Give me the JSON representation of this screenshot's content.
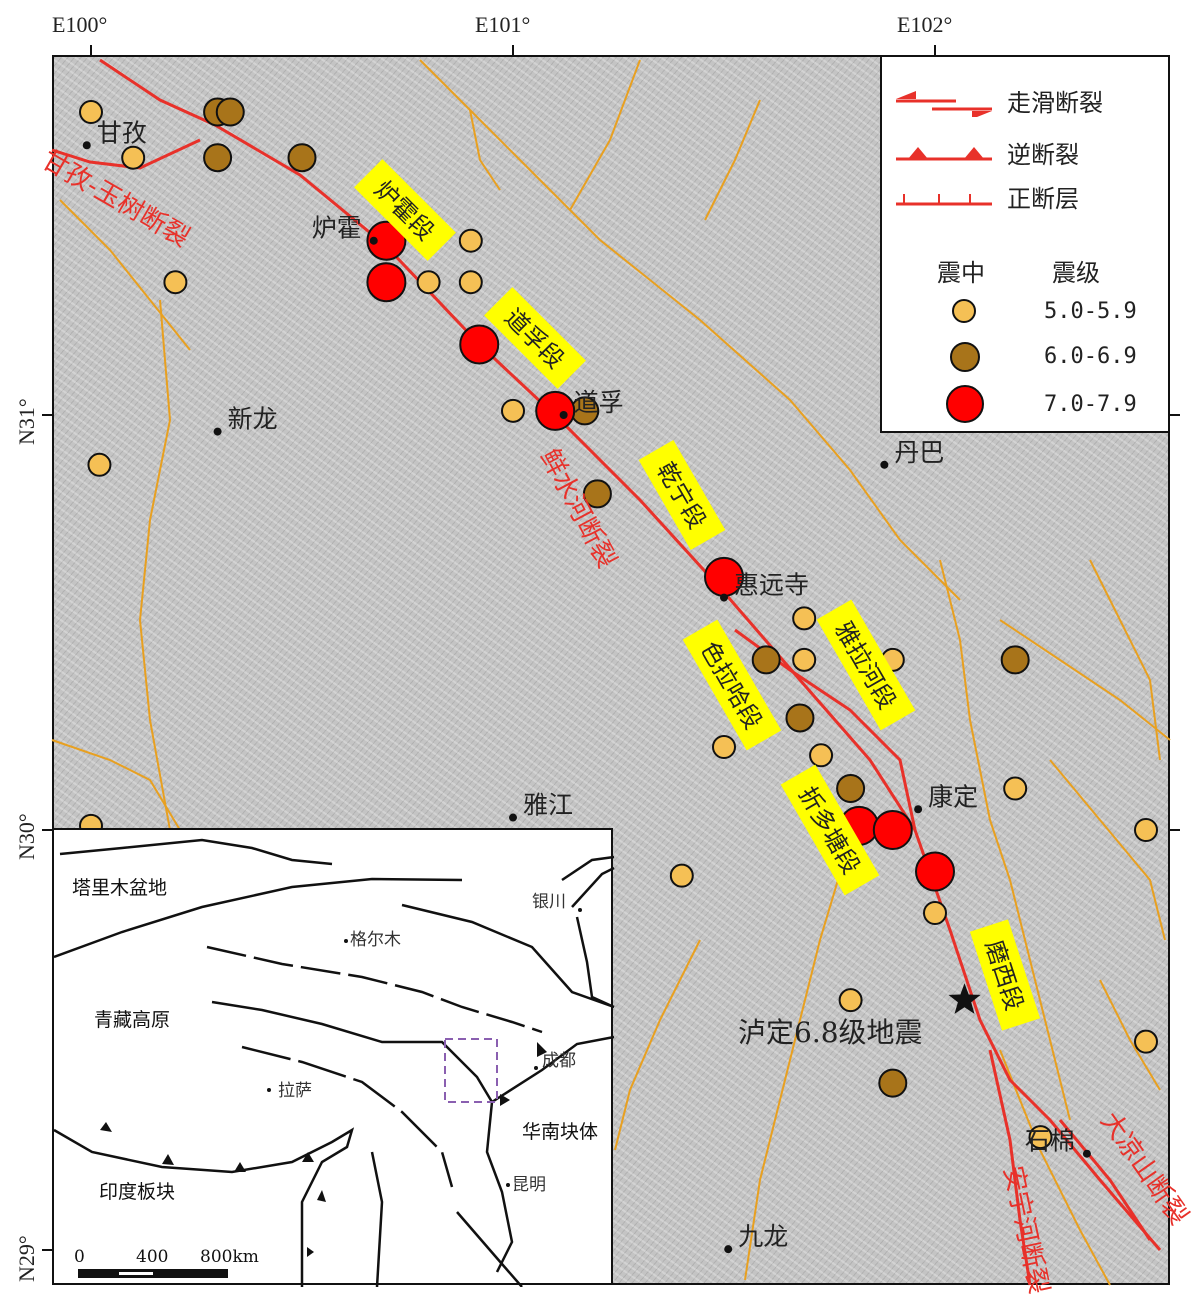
{
  "axes": {
    "longitude_labels": [
      "E100°",
      "E101°",
      "E102°"
    ],
    "latitude_labels": [
      "N31°",
      "N30°",
      "N29°"
    ]
  },
  "legend": {
    "strike_slip": "走滑断裂",
    "thrust": "逆断裂",
    "normal": "正断层",
    "epicenter_header": "震中",
    "magnitude_header": "震级",
    "classes": [
      {
        "range": "5.0-5.9",
        "color": "#f5c055"
      },
      {
        "range": "6.0-6.9",
        "color": "#a8741a"
      },
      {
        "range": "7.0-7.9",
        "color": "#ff0000"
      }
    ]
  },
  "colors": {
    "fault_main": "#e8312a",
    "fault_minor": "#e8a020",
    "segment_label_bg": "#ffff00",
    "inset_box": "#8a5fb0"
  },
  "places": [
    {
      "name": "甘孜",
      "lon": 99.99,
      "lat": 31.65
    },
    {
      "name": "炉霍",
      "lon": 100.67,
      "lat": 31.42
    },
    {
      "name": "道孚",
      "lon": 101.12,
      "lat": 31.0
    },
    {
      "name": "新龙",
      "lon": 100.3,
      "lat": 30.96
    },
    {
      "name": "丹巴",
      "lon": 101.88,
      "lat": 30.88
    },
    {
      "name": "惠远寺",
      "lon": 101.5,
      "lat": 30.56
    },
    {
      "name": "雅江",
      "lon": 101.0,
      "lat": 30.03
    },
    {
      "name": "康定",
      "lon": 101.96,
      "lat": 30.05
    },
    {
      "name": "石棉",
      "lon": 102.36,
      "lat": 29.22
    },
    {
      "name": "九龙",
      "lon": 101.51,
      "lat": 28.99
    }
  ],
  "segments": [
    "炉霍段",
    "道孚段",
    "乾宁段",
    "雅拉河段",
    "色拉哈段",
    "折多塘段",
    "磨西段"
  ],
  "fault_names": [
    "甘孜-玉树断裂",
    "鲜水河断裂",
    "大凉山断裂",
    "安宁河断裂"
  ],
  "mainshock": {
    "label": "泸定6.8级地震",
    "lon": 102.07,
    "lat": 29.59
  },
  "earthquakes": [
    {
      "lon": 100.0,
      "lat": 31.73,
      "class": 0
    },
    {
      "lon": 100.1,
      "lat": 31.62,
      "class": 0
    },
    {
      "lon": 100.2,
      "lat": 31.32,
      "class": 0
    },
    {
      "lon": 100.02,
      "lat": 30.88,
      "class": 0
    },
    {
      "lon": 100.9,
      "lat": 31.42,
      "class": 0
    },
    {
      "lon": 100.8,
      "lat": 31.32,
      "class": 0
    },
    {
      "lon": 100.9,
      "lat": 31.32,
      "class": 0
    },
    {
      "lon": 101.0,
      "lat": 31.01,
      "class": 0
    },
    {
      "lon": 101.69,
      "lat": 30.51,
      "class": 0
    },
    {
      "lon": 101.69,
      "lat": 30.41,
      "class": 0
    },
    {
      "lon": 101.9,
      "lat": 30.41,
      "class": 0
    },
    {
      "lon": 101.5,
      "lat": 30.2,
      "class": 0
    },
    {
      "lon": 101.73,
      "lat": 30.18,
      "class": 0
    },
    {
      "lon": 102.19,
      "lat": 30.1,
      "class": 0
    },
    {
      "lon": 102.5,
      "lat": 30.0,
      "class": 0
    },
    {
      "lon": 101.4,
      "lat": 29.89,
      "class": 0
    },
    {
      "lon": 102.0,
      "lat": 29.8,
      "class": 0
    },
    {
      "lon": 101.8,
      "lat": 29.59,
      "class": 0
    },
    {
      "lon": 102.5,
      "lat": 29.49,
      "class": 0
    },
    {
      "lon": 100.0,
      "lat": 30.01,
      "class": 0
    },
    {
      "lon": 102.25,
      "lat": 29.26,
      "class": 0
    },
    {
      "lon": 100.3,
      "lat": 31.73,
      "class": 1
    },
    {
      "lon": 100.33,
      "lat": 31.73,
      "class": 1
    },
    {
      "lon": 100.3,
      "lat": 31.62,
      "class": 1
    },
    {
      "lon": 100.5,
      "lat": 31.62,
      "class": 1
    },
    {
      "lon": 101.17,
      "lat": 31.01,
      "class": 1
    },
    {
      "lon": 101.2,
      "lat": 30.81,
      "class": 1
    },
    {
      "lon": 101.6,
      "lat": 30.41,
      "class": 1
    },
    {
      "lon": 102.19,
      "lat": 30.41,
      "class": 1
    },
    {
      "lon": 101.68,
      "lat": 30.27,
      "class": 1
    },
    {
      "lon": 101.8,
      "lat": 30.1,
      "class": 1
    },
    {
      "lon": 101.9,
      "lat": 29.39,
      "class": 1
    },
    {
      "lon": 100.7,
      "lat": 31.42,
      "class": 2
    },
    {
      "lon": 100.7,
      "lat": 31.32,
      "class": 2
    },
    {
      "lon": 100.92,
      "lat": 31.17,
      "class": 2
    },
    {
      "lon": 101.1,
      "lat": 31.01,
      "class": 2
    },
    {
      "lon": 101.5,
      "lat": 30.61,
      "class": 2
    },
    {
      "lon": 101.82,
      "lat": 30.01,
      "class": 2
    },
    {
      "lon": 101.9,
      "lat": 30.0,
      "class": 2
    },
    {
      "lon": 102.0,
      "lat": 29.9,
      "class": 2
    }
  ],
  "inset": {
    "labels": [
      "塔里木盆地",
      "青藏高原",
      "印度板块",
      "华南块体",
      "格尔木",
      "银川",
      "成都",
      "拉萨",
      "昆明"
    ],
    "scale": [
      "0",
      "400",
      "800km"
    ]
  }
}
